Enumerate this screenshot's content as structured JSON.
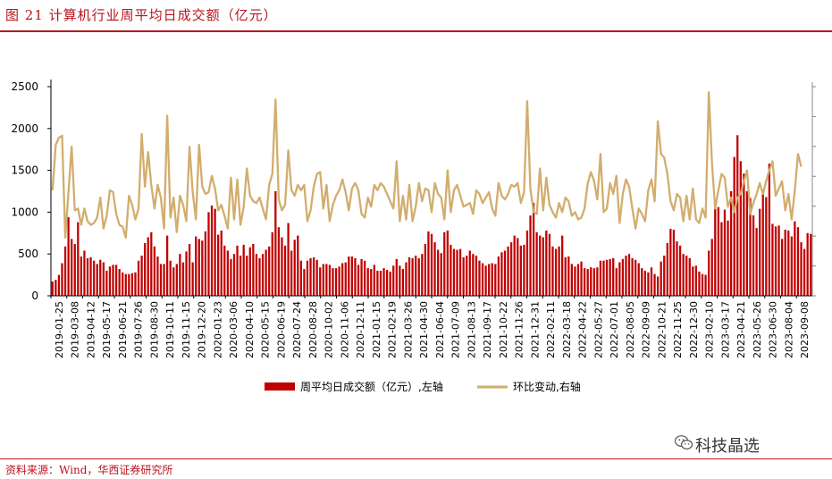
{
  "figure": {
    "title": "图 21  计算机行业周平均日成交额（亿元）",
    "source": "资料来源：Wind，华西证券研究所",
    "watermark": "科技晶选"
  },
  "colors": {
    "bar": "#c00000",
    "line": "#d2ad6e",
    "accent": "#b8141b",
    "axis": "#000000"
  },
  "icons": [
    "wechat-logo-icon"
  ],
  "chart_data": {
    "type": "bar+line",
    "grid": false,
    "legend_position": "bottom",
    "x_tick_labels": [
      "2019-01-25",
      "2019-03-08",
      "2019-04-12",
      "2019-05-17",
      "2019-06-21",
      "2019-07-26",
      "2019-08-30",
      "2019-10-11",
      "2019-11-15",
      "2019-12-20",
      "2020-01-23",
      "2020-03-06",
      "2020-04-10",
      "2020-05-15",
      "2020-06-19",
      "2020-07-24",
      "2020-08-28",
      "2020-10-02",
      "2020-11-06",
      "2020-12-11",
      "2021-01-15",
      "2021-02-19",
      "2021-03-26",
      "2021-04-30",
      "2021-06-04",
      "2021-07-09",
      "2021-08-13",
      "2021-09-17",
      "2021-10-22",
      "2021-11-26",
      "2021-12-31",
      "2022-02-11",
      "2022-03-18",
      "2022-04-22",
      "2022-05-27",
      "2022-07-01",
      "2022-08-05",
      "2022-09-09",
      "2022-10-21",
      "2022-11-25",
      "2022-12-30",
      "2023-02-10",
      "2023-03-17",
      "2023-04-21",
      "2023-05-26",
      "2023-06-30",
      "2023-08-04",
      "2023-09-08"
    ],
    "y_left": {
      "ylim": [
        0,
        2500
      ],
      "ticks": [
        "0",
        "500",
        "1000",
        "1500",
        "2000",
        "2500"
      ]
    },
    "y_right": {
      "visible_ticks": false
    },
    "series": [
      {
        "name": "周平均日成交额（亿元）,左轴",
        "type": "bar",
        "axis": "left",
        "values": [
          170,
          190,
          250,
          390,
          590,
          940,
          680,
          620,
          880,
          470,
          540,
          450,
          460,
          420,
          380,
          430,
          400,
          300,
          350,
          370,
          370,
          320,
          280,
          260,
          260,
          270,
          280,
          420,
          480,
          630,
          700,
          760,
          590,
          470,
          380,
          380,
          720,
          420,
          340,
          380,
          500,
          400,
          530,
          620,
          400,
          710,
          680,
          660,
          770,
          1000,
          1080,
          1040,
          730,
          780,
          600,
          540,
          440,
          500,
          600,
          480,
          610,
          480,
          580,
          620,
          500,
          450,
          500,
          550,
          590,
          760,
          1250,
          820,
          700,
          600,
          870,
          540,
          670,
          720,
          420,
          320,
          420,
          450,
          460,
          430,
          340,
          380,
          380,
          370,
          330,
          330,
          350,
          390,
          400,
          470,
          470,
          450,
          370,
          440,
          420,
          330,
          320,
          370,
          300,
          300,
          330,
          310,
          290,
          360,
          440,
          360,
          320,
          400,
          460,
          450,
          480,
          450,
          500,
          620,
          770,
          740,
          640,
          550,
          510,
          760,
          780,
          610,
          560,
          550,
          560,
          460,
          480,
          540,
          500,
          480,
          420,
          390,
          360,
          380,
          390,
          380,
          470,
          520,
          540,
          590,
          640,
          720,
          690,
          600,
          610,
          780,
          960,
          1110,
          760,
          720,
          700,
          780,
          740,
          590,
          560,
          590,
          720,
          460,
          470,
          380,
          350,
          380,
          410,
          330,
          320,
          340,
          330,
          340,
          420,
          420,
          430,
          440,
          450,
          330,
          400,
          440,
          480,
          500,
          450,
          430,
          390,
          330,
          300,
          280,
          340,
          260,
          230,
          410,
          480,
          630,
          800,
          790,
          650,
          600,
          500,
          480,
          450,
          350,
          360,
          290,
          260,
          250,
          540,
          680,
          1070,
          1060,
          880,
          1030,
          900,
          1250,
          1660,
          1920,
          1610,
          1460,
          1250,
          1170,
          960,
          810,
          1040,
          1270,
          1180,
          1580,
          860,
          830,
          840,
          680,
          790,
          780,
          710,
          890,
          820,
          640,
          560,
          750,
          740
        ]
      },
      {
        "name": "环比变动,右轴",
        "type": "line",
        "axis": "right",
        "pixel_note": "relative series, right axis unlabeled",
        "values": [
          0.58,
          0.83,
          0.87,
          0.88,
          0.32,
          0.57,
          0.82,
          0.47,
          0.48,
          0.39,
          0.48,
          0.41,
          0.39,
          0.4,
          0.43,
          0.54,
          0.37,
          0.44,
          0.58,
          0.57,
          0.45,
          0.39,
          0.38,
          0.32,
          0.55,
          0.5,
          0.42,
          0.48,
          0.89,
          0.6,
          0.79,
          0.61,
          0.48,
          0.61,
          0.54,
          0.37,
          0.99,
          0.43,
          0.54,
          0.35,
          0.55,
          0.5,
          0.41,
          0.82,
          0.57,
          0.42,
          0.83,
          0.6,
          0.56,
          0.57,
          0.66,
          0.59,
          0.47,
          0.5,
          0.44,
          0.37,
          0.65,
          0.42,
          0.64,
          0.39,
          0.49,
          0.7,
          0.55,
          0.52,
          0.51,
          0.54,
          0.48,
          0.42,
          0.61,
          0.67,
          1.08,
          0.53,
          0.47,
          0.5,
          0.8,
          0.58,
          0.55,
          0.61,
          0.58,
          0.61,
          0.41,
          0.47,
          0.6,
          0.67,
          0.68,
          0.48,
          0.61,
          0.41,
          0.5,
          0.55,
          0.58,
          0.64,
          0.57,
          0.47,
          0.59,
          0.62,
          0.58,
          0.45,
          0.43,
          0.54,
          0.49,
          0.61,
          0.58,
          0.62,
          0.6,
          0.56,
          0.52,
          0.48,
          0.74,
          0.41,
          0.55,
          0.42,
          0.61,
          0.41,
          0.49,
          0.62,
          0.52,
          0.59,
          0.58,
          0.46,
          0.62,
          0.56,
          0.54,
          0.42,
          0.69,
          0.46,
          0.58,
          0.61,
          0.55,
          0.49,
          0.5,
          0.51,
          0.45,
          0.58,
          0.56,
          0.51,
          0.54,
          0.57,
          0.48,
          0.44,
          0.62,
          0.55,
          0.53,
          0.56,
          0.61,
          0.6,
          0.62,
          0.51,
          0.57,
          1.07,
          0.59,
          0.46,
          0.45,
          0.7,
          0.47,
          0.65,
          0.5,
          0.46,
          0.43,
          0.51,
          0.46,
          0.54,
          0.52,
          0.44,
          0.46,
          0.42,
          0.43,
          0.48,
          0.62,
          0.68,
          0.63,
          0.53,
          0.78,
          0.46,
          0.48,
          0.62,
          0.56,
          0.66,
          0.4,
          0.56,
          0.64,
          0.6,
          0.48,
          0.37,
          0.48,
          0.45,
          0.41,
          0.58,
          0.64,
          0.52,
          0.96,
          0.78,
          0.76,
          0.67,
          0.52,
          0.47,
          0.56,
          0.54,
          0.41,
          0.55,
          0.42,
          0.59,
          0.42,
          0.4,
          0.48,
          0.43,
          1.12,
          0.73,
          0.48,
          0.58,
          0.67,
          0.65,
          0.49,
          0.54,
          0.46,
          0.54,
          0.56,
          0.63,
          0.69,
          0.45,
          0.51,
          0.56,
          0.62,
          0.56,
          0.63,
          0.69,
          0.74,
          0.55,
          0.59,
          0.63,
          0.47,
          0.56,
          0.42,
          0.58,
          0.78,
          0.71
        ]
      }
    ]
  },
  "legend": {
    "bar_label": "周平均日成交额（亿元）,左轴",
    "line_label": "环比变动,右轴"
  }
}
